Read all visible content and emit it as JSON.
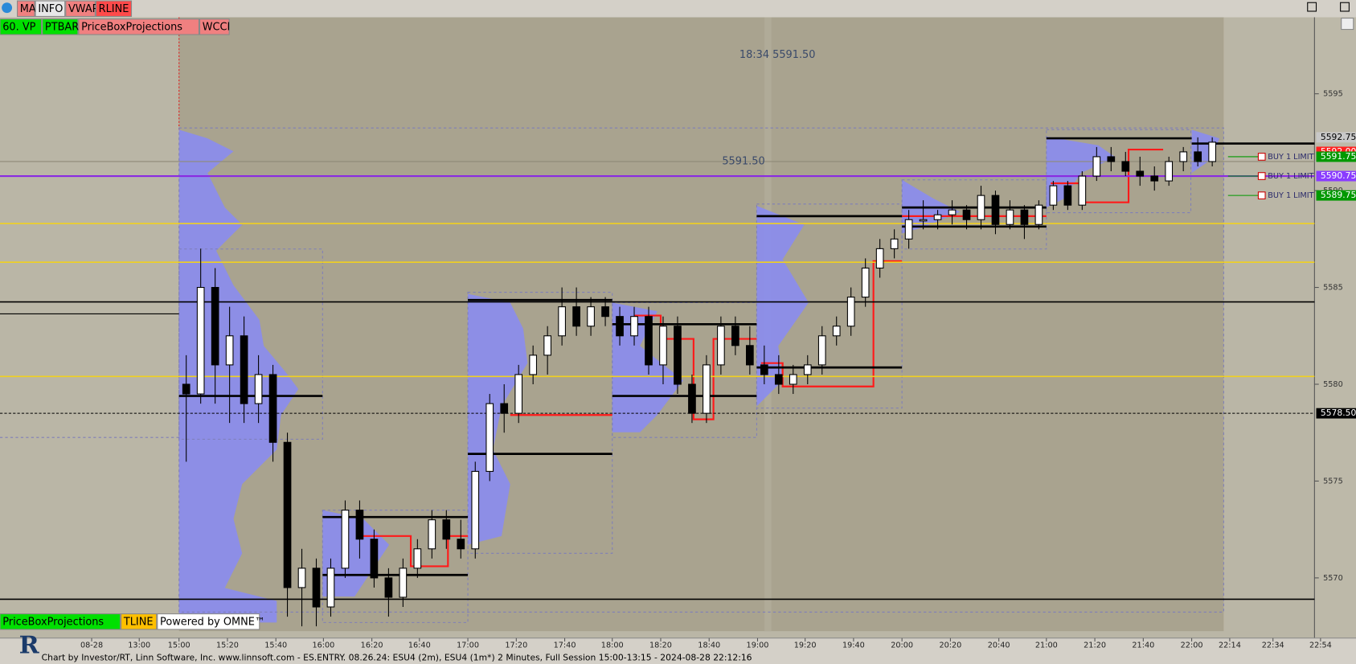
{
  "toolbar": {
    "buttons": [
      {
        "label": "MA",
        "color": "#f08080"
      },
      {
        "label": "INFO",
        "color": "#e8e8e8"
      },
      {
        "label": "VWAP",
        "color": "#f08080"
      },
      {
        "label": "RLINE",
        "color": "#ff4a4a"
      }
    ]
  },
  "indicators_top": [
    {
      "label": "60. VP",
      "color": "#00e000"
    },
    {
      "label": "PTBAR",
      "color": "#00e000"
    },
    {
      "label": "PriceBoxProjections",
      "color": "#f08080"
    },
    {
      "label": "WCCI",
      "color": "#f08080"
    }
  ],
  "indicators_bottom": [
    {
      "label": "PriceBoxProjections",
      "color": "#00e000"
    },
    {
      "label": "TLINE",
      "color": "#ffc000"
    },
    {
      "label": "Powered by OMNE™",
      "color": "#ffffff"
    }
  ],
  "annotations": [
    {
      "label": "18:34  5591.50",
      "price": 5597.0
    },
    {
      "label": "5591.50",
      "price": 5591.5
    }
  ],
  "price_axis": {
    "ylim": [
      5567.25,
      5598.95
    ],
    "yticks": [
      5570,
      5575,
      5580,
      5585,
      5590,
      5595
    ]
  },
  "price_labels": [
    {
      "label": "5592.75",
      "price": 5592.75,
      "color": "#c8c8c8",
      "text_color": "#000000"
    },
    {
      "label": "5592.00",
      "price": 5592.0,
      "color": "#ff2020",
      "text_color": "#ffffff"
    },
    {
      "label": "5591.75",
      "price": 5591.75,
      "color": "#009900",
      "text_color": "#ffffff"
    },
    {
      "label": "5590.75",
      "price": 5590.75,
      "color": "#8a3cff",
      "text_color": "#ffffff"
    },
    {
      "label": "5589.75",
      "price": 5589.75,
      "color": "#009900",
      "text_color": "#ffffff"
    },
    {
      "label": "5578.50",
      "price": 5578.5,
      "color": "#000000",
      "text_color": "#ffffff"
    }
  ],
  "orders": [
    {
      "label": "BUY 1 LIMIT",
      "price": 5591.75
    },
    {
      "label": "BUY 1 LIMIT",
      "price": 5590.75
    },
    {
      "label": "BUY 1 LIMIT",
      "price": 5589.75
    }
  ],
  "levels": [
    {
      "price": 5590.75,
      "color": "#8a2be2",
      "width": 2,
      "dashed": false
    },
    {
      "price": 5591.5,
      "color": "#8f8a78",
      "width": 1,
      "dashed": false
    },
    {
      "price": 5584.25,
      "color": "#000000",
      "width": 1.5,
      "dashed": false
    },
    {
      "price": 5568.9,
      "color": "#000000",
      "width": 1.5,
      "dashed": false
    },
    {
      "price": 5578.5,
      "color": "#000000",
      "width": 1,
      "dashed": true
    },
    {
      "price": 5580.4,
      "color": "#f0d020",
      "width": 1.5,
      "dashed": false
    },
    {
      "price": 5586.3,
      "color": "#f0d020",
      "width": 1.5,
      "dashed": false
    },
    {
      "price": 5588.3,
      "color": "#f0d020",
      "width": 1.5,
      "dashed": false
    }
  ],
  "time_axis": [
    "08-28",
    "13:00",
    "15:00",
    "15:20",
    "15:40",
    "16:00",
    "16:20",
    "16:40",
    "17:00",
    "17:20",
    "17:40",
    "18:00",
    "18:20",
    "18:40",
    "19:00",
    "19:20",
    "19:40",
    "20:00",
    "20:20",
    "20:40",
    "21:00",
    "21:20",
    "21:40",
    "22:00",
    "22:14",
    "22:34",
    "22:54"
  ],
  "candles": [
    [
      5580,
      5581.5,
      5576,
      5579.5
    ],
    [
      5579.5,
      5587,
      5579,
      5585
    ],
    [
      5585,
      5586,
      5579,
      5581
    ],
    [
      5581,
      5584,
      5578,
      5582.5
    ],
    [
      5582.5,
      5583.5,
      5578,
      5579
    ],
    [
      5579,
      5581.5,
      5578,
      5580.5
    ],
    [
      5580.5,
      5581,
      5576,
      5577
    ],
    [
      5577,
      5577.5,
      5568,
      5569.5
    ],
    [
      5569.5,
      5571.5,
      5567.5,
      5570.5
    ],
    [
      5570.5,
      5571,
      5567.5,
      5568.5
    ],
    [
      5568.5,
      5571,
      5568,
      5570.5
    ],
    [
      5570.5,
      5574,
      5570,
      5573.5
    ],
    [
      5573.5,
      5574,
      5571,
      5572
    ],
    [
      5572,
      5572.5,
      5569.5,
      5570
    ],
    [
      5570,
      5570.5,
      5568,
      5569
    ],
    [
      5569,
      5571,
      5568.5,
      5570.5
    ],
    [
      5570.5,
      5572,
      5570,
      5571.5
    ],
    [
      5571.5,
      5573.5,
      5571,
      5573
    ],
    [
      5573,
      5573.5,
      5571.5,
      5572
    ],
    [
      5572,
      5573,
      5571,
      5571.5
    ],
    [
      5571.5,
      5576,
      5571,
      5575.5
    ],
    [
      5575.5,
      5579.5,
      5575,
      5579
    ],
    [
      5579,
      5580,
      5577.5,
      5578.5
    ],
    [
      5578.5,
      5581,
      5578,
      5580.5
    ],
    [
      5580.5,
      5582,
      5580,
      5581.5
    ],
    [
      5581.5,
      5583,
      5580.5,
      5582.5
    ],
    [
      5582.5,
      5585,
      5582,
      5584
    ],
    [
      5584,
      5585,
      5582.5,
      5583
    ],
    [
      5583,
      5584.5,
      5582.5,
      5584
    ],
    [
      5584,
      5584.5,
      5583,
      5583.5
    ],
    [
      5583.5,
      5584,
      5582,
      5582.5
    ],
    [
      5582.5,
      5584,
      5582,
      5583.5
    ],
    [
      5583.5,
      5584,
      5580.5,
      5581
    ],
    [
      5581,
      5583.5,
      5580,
      5583
    ],
    [
      5583,
      5583.5,
      5579.5,
      5580
    ],
    [
      5580,
      5580.5,
      5578,
      5578.5
    ],
    [
      5578.5,
      5581.5,
      5578,
      5581
    ],
    [
      5581,
      5583.5,
      5580.5,
      5583
    ],
    [
      5583,
      5583.5,
      5581.5,
      5582
    ],
    [
      5582,
      5583,
      5580.5,
      5581
    ],
    [
      5581,
      5582,
      5580,
      5580.5
    ],
    [
      5580.5,
      5581.5,
      5579.5,
      5580
    ],
    [
      5580,
      5581,
      5579.5,
      5580.5
    ],
    [
      5580.5,
      5581.5,
      5580,
      5581
    ],
    [
      5581,
      5583,
      5580.5,
      5582.5
    ],
    [
      5582.5,
      5583.5,
      5582,
      5583
    ],
    [
      5583,
      5585,
      5582.5,
      5584.5
    ],
    [
      5584.5,
      5586.5,
      5584,
      5586
    ],
    [
      5586,
      5587.5,
      5585.5,
      5587
    ],
    [
      5587,
      5588,
      5586.5,
      5587.5
    ],
    [
      5587.5,
      5589,
      5587,
      5588.5
    ],
    [
      5588.5,
      5589.5,
      5588,
      5588.5
    ],
    [
      5588.5,
      5589,
      5588,
      5588.75
    ],
    [
      5588.75,
      5589.5,
      5588.25,
      5589
    ],
    [
      5589,
      5589.25,
      5588,
      5588.5
    ],
    [
      5588.5,
      5590.25,
      5588,
      5589.75
    ],
    [
      5589.75,
      5590,
      5587.75,
      5588.25
    ],
    [
      5588.25,
      5589.5,
      5588,
      5589
    ],
    [
      5589,
      5589.25,
      5587.5,
      5588.25
    ],
    [
      5588.25,
      5589.5,
      5588,
      5589.25
    ],
    [
      5589.25,
      5590.5,
      5589,
      5590.25
    ],
    [
      5590.25,
      5590.5,
      5589,
      5589.25
    ],
    [
      5589.25,
      5591,
      5589,
      5590.75
    ],
    [
      5590.75,
      5592.25,
      5590.5,
      5591.75
    ],
    [
      5591.75,
      5592.25,
      5591,
      5591.5
    ],
    [
      5591.5,
      5592,
      5590.75,
      5591
    ],
    [
      5591,
      5591.75,
      5590.25,
      5590.75
    ],
    [
      5590.75,
      5591.25,
      5590,
      5590.5
    ],
    [
      5590.5,
      5591.75,
      5590.25,
      5591.5
    ],
    [
      5591.5,
      5592.25,
      5591,
      5592
    ],
    [
      5592,
      5592.75,
      5591.25,
      5591.5
    ],
    [
      5591.5,
      5592.75,
      5591.25,
      5592.5
    ]
  ],
  "status_line": "Chart by Investor/RT, Linn Software, Inc. www.linnsoft.com - ES.ENTRY.   08.26.24: ESU4 (2m), ESU4 (1m*) 2 Minutes, Full Session 15:00-13:15 - 2024-08-28 22:12:16"
}
